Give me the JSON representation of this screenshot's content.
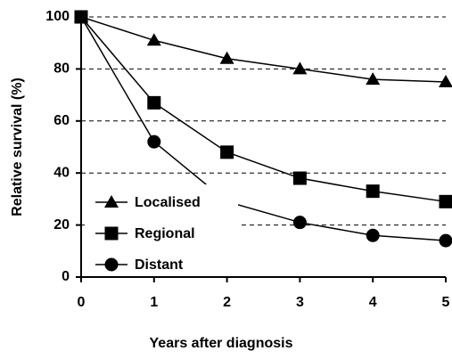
{
  "chart_data": {
    "type": "line",
    "x_label": "Years after diagnosis",
    "y_label": "Relative survival (%)",
    "x": [
      0,
      1,
      2,
      3,
      4,
      5
    ],
    "series": [
      {
        "name": "Localised",
        "color": "#000000",
        "marker": "triangle",
        "values": [
          100,
          91,
          84,
          80,
          76,
          75
        ]
      },
      {
        "name": "Regional",
        "color": "#000000",
        "marker": "square",
        "values": [
          100,
          67,
          48,
          38,
          33,
          29
        ]
      },
      {
        "name": "Distant",
        "color": "#000000",
        "marker": "circle",
        "values": [
          100,
          52,
          29,
          21,
          16,
          14
        ]
      }
    ],
    "xlim": [
      0,
      5
    ],
    "xticks": [
      0,
      1,
      2,
      3,
      4,
      5
    ],
    "ylim": [
      0,
      100
    ],
    "yticks": [
      0,
      20,
      40,
      60,
      80,
      100
    ],
    "grid": true,
    "legend": "lower left"
  }
}
